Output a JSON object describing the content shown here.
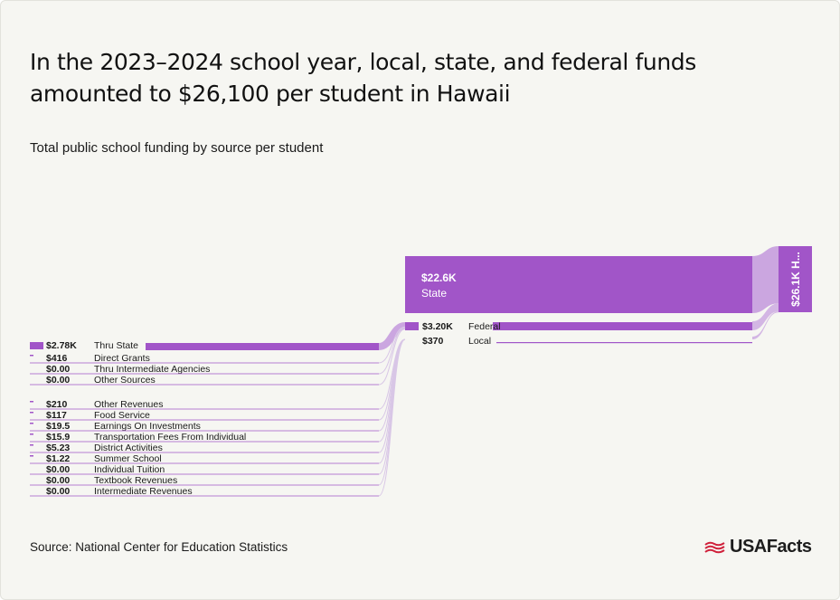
{
  "title": "In the 2023–2024 school year, local, state, and federal funds amounted to $26,100 per student in Hawaii",
  "subtitle": "Total public school funding by source per student",
  "source": "Source: National Center for Education Statistics",
  "brand": {
    "name": "USAFacts",
    "icon": "usa-flag-icon"
  },
  "colors": {
    "accent": "#a155c8",
    "accent_light": "#cba6e0",
    "link": "#d8c6e6",
    "background": "#f6f6f2"
  },
  "chart_data": {
    "type": "sankey",
    "total": {
      "value": 26100,
      "label": "$26.1K H..."
    },
    "sources": [
      {
        "id": "state",
        "value_label": "$22.6K",
        "label": "State",
        "value": 22600
      },
      {
        "id": "federal",
        "value_label": "$3.20K",
        "label": "Federal",
        "value": 3200
      },
      {
        "id": "local",
        "value_label": "$370",
        "label": "Local",
        "value": 370
      }
    ],
    "federal_breakdown": [
      {
        "value_label": "$2.78K",
        "label": "Thru State",
        "value": 2780
      },
      {
        "value_label": "$416",
        "label": "Direct Grants",
        "value": 416
      },
      {
        "value_label": "$0.00",
        "label": "Thru Intermediate Agencies",
        "value": 0
      },
      {
        "value_label": "$0.00",
        "label": "Other Sources",
        "value": 0
      }
    ],
    "local_breakdown": [
      {
        "value_label": "$210",
        "label": "Other Revenues",
        "value": 210
      },
      {
        "value_label": "$117",
        "label": "Food Service",
        "value": 117
      },
      {
        "value_label": "$19.5",
        "label": "Earnings On Investments",
        "value": 19.5
      },
      {
        "value_label": "$15.9",
        "label": "Transportation Fees From Individual",
        "value": 15.9
      },
      {
        "value_label": "$5.23",
        "label": "District Activities",
        "value": 5.23
      },
      {
        "value_label": "$1.22",
        "label": "Summer School",
        "value": 1.22
      },
      {
        "value_label": "$0.00",
        "label": "Individual Tuition",
        "value": 0
      },
      {
        "value_label": "$0.00",
        "label": "Textbook Revenues",
        "value": 0
      },
      {
        "value_label": "$0.00",
        "label": "Intermediate Revenues",
        "value": 0
      }
    ]
  }
}
